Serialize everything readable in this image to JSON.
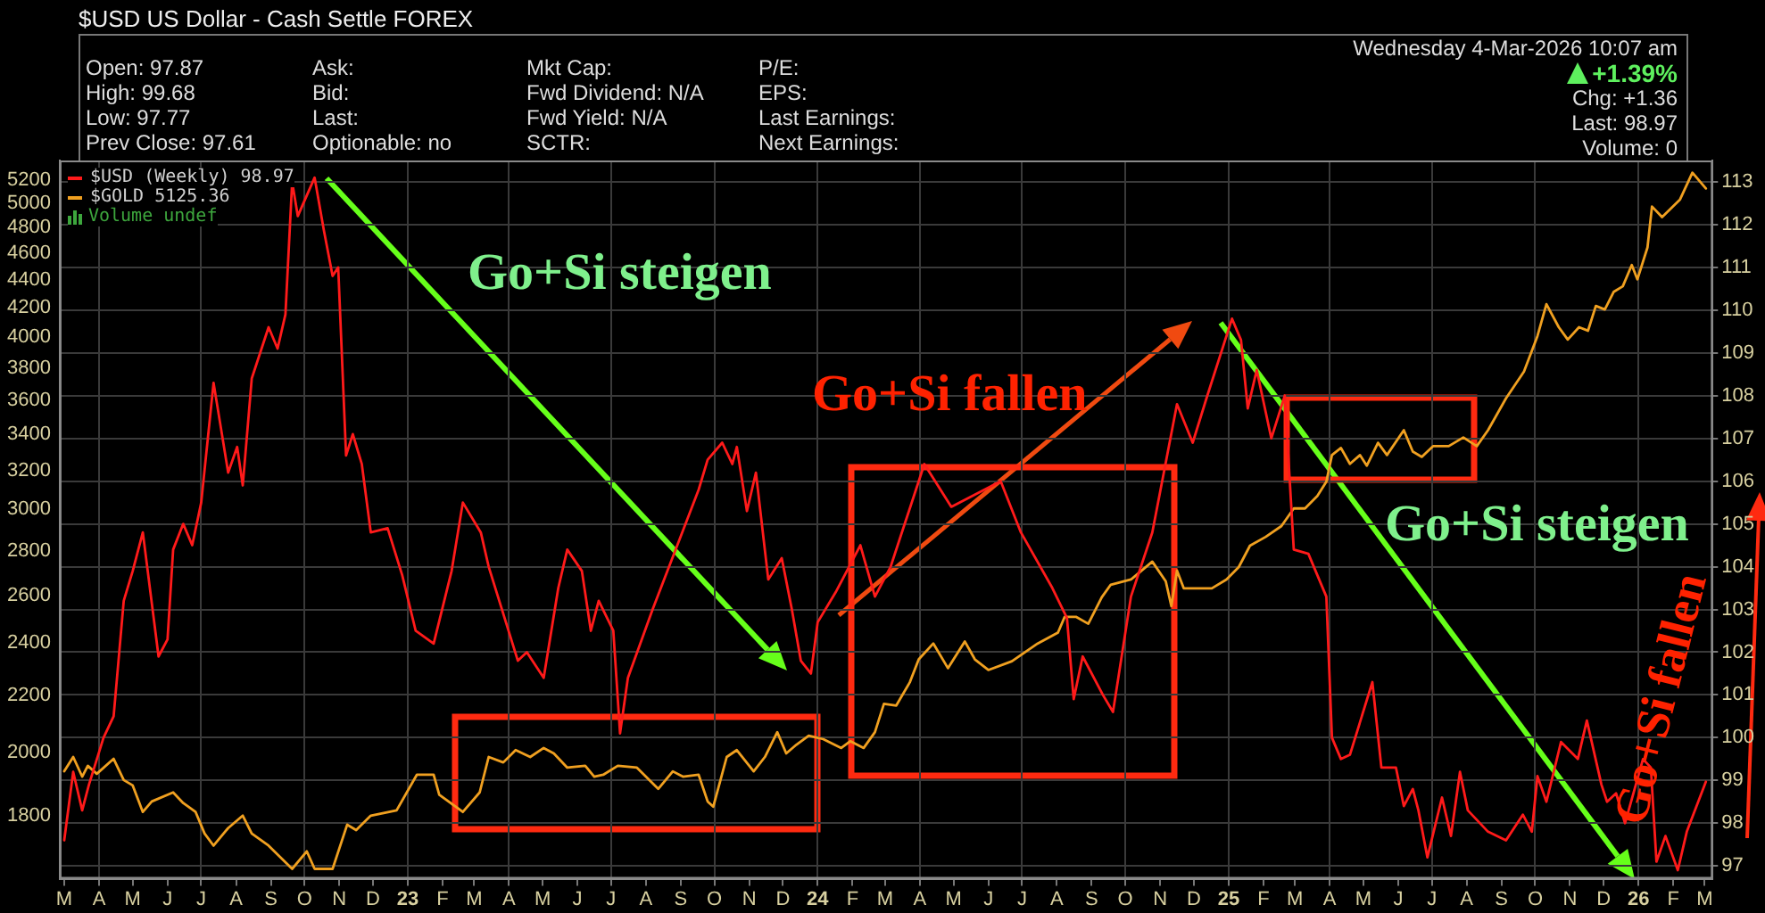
{
  "chart_data": {
    "type": "line",
    "title": "$USD US Dollar - Cash Settle FOREX",
    "annotations": [
      "Open: 97.87",
      "High: 99.68",
      "Low: 97.77",
      "Prev Close: 97.61",
      "Ask:",
      "Bid:",
      "Last:",
      "Optionable: no",
      "Mkt Cap:",
      "Fwd Dividend: N/A",
      "Fwd Yield: N/A",
      "SCTR:",
      "P/E:",
      "EPS:",
      "Last Earnings:",
      "Next Earnings:",
      "Wednesday 4-Mar-2026 10:07 am",
      "+1.39%",
      "Chg: +1.36",
      "Last: 98.97",
      "Volume: 0",
      "Volume undef",
      "Go+Si steigen",
      "Go+Si fallen",
      "Go+Si steigen",
      "Go+Si fallen"
    ],
    "xlim": [
      "2022-02-25",
      "2026-03-08"
    ],
    "xticks": [
      {
        "value": "2022-03-01",
        "label": "M"
      },
      {
        "value": "2022-04-01",
        "label": "A"
      },
      {
        "value": "2022-05-01",
        "label": "M"
      },
      {
        "value": "2022-06-01",
        "label": "J"
      },
      {
        "value": "2022-07-01",
        "label": "J"
      },
      {
        "value": "2022-08-01",
        "label": "A"
      },
      {
        "value": "2022-09-01",
        "label": "S"
      },
      {
        "value": "2022-10-01",
        "label": "O"
      },
      {
        "value": "2022-11-01",
        "label": "N"
      },
      {
        "value": "2022-12-01",
        "label": "D"
      },
      {
        "value": "2023-01-01",
        "label": "23"
      },
      {
        "value": "2023-02-01",
        "label": "F"
      },
      {
        "value": "2023-03-01",
        "label": "M"
      },
      {
        "value": "2023-04-01",
        "label": "A"
      },
      {
        "value": "2023-05-01",
        "label": "M"
      },
      {
        "value": "2023-06-01",
        "label": "J"
      },
      {
        "value": "2023-07-01",
        "label": "J"
      },
      {
        "value": "2023-08-01",
        "label": "A"
      },
      {
        "value": "2023-09-01",
        "label": "S"
      },
      {
        "value": "2023-10-01",
        "label": "O"
      },
      {
        "value": "2023-11-01",
        "label": "N"
      },
      {
        "value": "2023-12-01",
        "label": "D"
      },
      {
        "value": "2024-01-01",
        "label": "24"
      },
      {
        "value": "2024-02-01",
        "label": "F"
      },
      {
        "value": "2024-03-01",
        "label": "M"
      },
      {
        "value": "2024-04-01",
        "label": "A"
      },
      {
        "value": "2024-05-01",
        "label": "M"
      },
      {
        "value": "2024-06-01",
        "label": "J"
      },
      {
        "value": "2024-07-01",
        "label": "J"
      },
      {
        "value": "2024-08-01",
        "label": "A"
      },
      {
        "value": "2024-09-01",
        "label": "S"
      },
      {
        "value": "2024-10-01",
        "label": "O"
      },
      {
        "value": "2024-11-01",
        "label": "N"
      },
      {
        "value": "2024-12-01",
        "label": "D"
      },
      {
        "value": "2025-01-01",
        "label": "25"
      },
      {
        "value": "2025-02-01",
        "label": "F"
      },
      {
        "value": "2025-03-01",
        "label": "M"
      },
      {
        "value": "2025-04-01",
        "label": "A"
      },
      {
        "value": "2025-05-01",
        "label": "M"
      },
      {
        "value": "2025-06-01",
        "label": "J"
      },
      {
        "value": "2025-07-01",
        "label": "J"
      },
      {
        "value": "2025-08-01",
        "label": "A"
      },
      {
        "value": "2025-09-01",
        "label": "S"
      },
      {
        "value": "2025-10-01",
        "label": "O"
      },
      {
        "value": "2025-11-01",
        "label": "N"
      },
      {
        "value": "2025-12-01",
        "label": "D"
      },
      {
        "value": "2026-01-01",
        "label": "26"
      },
      {
        "value": "2026-02-01",
        "label": "F"
      },
      {
        "value": "2026-03-01",
        "label": "M"
      }
    ],
    "ylim": [
      1620,
      5370
    ],
    "yticks": [
      1800,
      2000,
      2200,
      2400,
      2600,
      2800,
      3000,
      3200,
      3400,
      3600,
      3800,
      4000,
      4200,
      4400,
      4600,
      4800,
      5000,
      5200
    ],
    "y2lim": [
      96.7,
      113.5
    ],
    "y2ticks": [
      97,
      98,
      99,
      100,
      101,
      102,
      103,
      104,
      105,
      106,
      107,
      108,
      109,
      110,
      111,
      112,
      113
    ],
    "log": "y",
    "grid": true,
    "legend": "top left",
    "series": [
      {
        "name": "$USD (Weekly) 98.97",
        "color": "#ff1a1a",
        "axis": "y2",
        "x": [
          "2022-03-01",
          "2022-03-09",
          "2022-03-17",
          "2022-03-23",
          "2022-04-05",
          "2022-04-14",
          "2022-04-23",
          "2022-05-01",
          "2022-05-10",
          "2022-05-24",
          "2022-06-01",
          "2022-06-06",
          "2022-06-15",
          "2022-06-23",
          "2022-07-01",
          "2022-07-12",
          "2022-07-25",
          "2022-08-02",
          "2022-08-07",
          "2022-08-15",
          "2022-08-30",
          "2022-09-07",
          "2022-09-14",
          "2022-09-20",
          "2022-09-25",
          "2022-10-10",
          "2022-10-18",
          "2022-10-26",
          "2022-10-31",
          "2022-11-07",
          "2022-11-13",
          "2022-11-21",
          "2022-11-29",
          "2022-12-14",
          "2022-12-27",
          "2023-01-08",
          "2023-01-24",
          "2023-02-09",
          "2023-02-19",
          "2023-03-07",
          "2023-03-14",
          "2023-04-09",
          "2023-04-17",
          "2023-05-02",
          "2023-05-15",
          "2023-05-23",
          "2023-06-05",
          "2023-06-13",
          "2023-06-20",
          "2023-07-03",
          "2023-07-09",
          "2023-07-16",
          "2023-08-07",
          "2023-08-29",
          "2023-09-17",
          "2023-09-25",
          "2023-10-08",
          "2023-10-17",
          "2023-10-21",
          "2023-10-30",
          "2023-11-07",
          "2023-11-18",
          "2023-11-30",
          "2023-12-09",
          "2023-12-17",
          "2023-12-26",
          "2024-01-01",
          "2024-01-17",
          "2024-02-08",
          "2024-02-21",
          "2024-03-06",
          "2024-04-05",
          "2024-04-29",
          "2024-06-12",
          "2024-06-30",
          "2024-07-28",
          "2024-08-10",
          "2024-08-16",
          "2024-08-24",
          "2024-09-11",
          "2024-09-20",
          "2024-10-06",
          "2024-10-25",
          "2024-11-16",
          "2024-11-30",
          "2024-12-13",
          "2025-01-04",
          "2025-01-12",
          "2025-01-18",
          "2025-01-26",
          "2025-02-08",
          "2025-02-20",
          "2025-02-28",
          "2025-03-13",
          "2025-03-29",
          "2025-04-03",
          "2025-04-11",
          "2025-04-19",
          "2025-05-09",
          "2025-05-17",
          "2025-05-30",
          "2025-06-06",
          "2025-06-14",
          "2025-06-19",
          "2025-06-27",
          "2025-07-10",
          "2025-07-18",
          "2025-07-26",
          "2025-08-02",
          "2025-08-20",
          "2025-09-05",
          "2025-09-20",
          "2025-09-28",
          "2025-10-03",
          "2025-10-11",
          "2025-10-24",
          "2025-11-08",
          "2025-11-16",
          "2025-11-29",
          "2025-12-04",
          "2025-12-12",
          "2025-12-20",
          "2026-01-05",
          "2026-01-12",
          "2026-01-17",
          "2026-01-25",
          "2026-02-05",
          "2026-02-13",
          "2026-03-02"
        ],
        "values": [
          97.6,
          99.2,
          98.3,
          98.9,
          100.0,
          100.5,
          103.2,
          103.9,
          104.8,
          101.9,
          102.3,
          104.4,
          105.0,
          104.5,
          105.5,
          108.3,
          106.2,
          106.8,
          105.9,
          108.4,
          109.6,
          109.1,
          109.9,
          113.0,
          112.2,
          113.1,
          111.9,
          110.8,
          111.0,
          106.6,
          107.1,
          106.4,
          104.8,
          104.9,
          103.8,
          102.5,
          102.2,
          103.9,
          105.5,
          104.8,
          104.0,
          101.8,
          102.0,
          101.4,
          103.5,
          104.4,
          103.9,
          102.5,
          103.2,
          102.5,
          100.1,
          101.4,
          103.0,
          104.5,
          105.8,
          106.5,
          106.9,
          106.4,
          106.8,
          105.3,
          106.2,
          103.7,
          104.2,
          103.0,
          101.8,
          101.5,
          102.7,
          103.4,
          104.5,
          103.3,
          104.0,
          106.4,
          105.4,
          106.0,
          104.8,
          103.5,
          102.8,
          100.9,
          101.9,
          101.0,
          100.6,
          103.3,
          104.8,
          107.8,
          106.9,
          108.0,
          109.8,
          109.3,
          107.7,
          108.6,
          107.0,
          108.0,
          104.4,
          104.3,
          103.3,
          100.0,
          99.5,
          99.6,
          101.3,
          99.3,
          99.3,
          98.4,
          98.8,
          98.3,
          97.2,
          98.6,
          97.7,
          99.2,
          98.3,
          97.8,
          97.6,
          98.2,
          97.8,
          99.1,
          98.5,
          99.9,
          99.5,
          100.4,
          98.9,
          98.5,
          98.7,
          98.0,
          99.5,
          99.3,
          97.1,
          97.7,
          96.9,
          97.8,
          98.97
        ]
      },
      {
        "name": "$GOLD 5125.36",
        "color": "#f0a020",
        "x": [
          "2022-03-01",
          "2022-03-09",
          "2022-03-17",
          "2022-03-22",
          "2022-03-30",
          "2022-04-14",
          "2022-04-23",
          "2022-05-01",
          "2022-05-10",
          "2022-05-18",
          "2022-06-06",
          "2022-06-15",
          "2022-06-26",
          "2022-07-04",
          "2022-07-12",
          "2022-07-25",
          "2022-08-07",
          "2022-08-15",
          "2022-08-30",
          "2022-09-20",
          "2022-10-03",
          "2022-10-10",
          "2022-10-26",
          "2022-11-08",
          "2022-11-16",
          "2022-11-29",
          "2022-12-22",
          "2023-01-09",
          "2023-01-24",
          "2023-01-29",
          "2023-02-19",
          "2023-03-06",
          "2023-03-14",
          "2023-03-27",
          "2023-04-07",
          "2023-04-20",
          "2023-05-02",
          "2023-05-11",
          "2023-05-23",
          "2023-06-08",
          "2023-06-16",
          "2023-06-24",
          "2023-07-07",
          "2023-07-24",
          "2023-08-12",
          "2023-08-25",
          "2023-09-03",
          "2023-09-17",
          "2023-09-25",
          "2023-09-30",
          "2023-10-12",
          "2023-10-21",
          "2023-11-05",
          "2023-11-15",
          "2023-11-26",
          "2023-12-04",
          "2023-12-13",
          "2023-12-24",
          "2024-01-06",
          "2024-01-22",
          "2024-01-30",
          "2024-02-11",
          "2024-02-21",
          "2024-02-29",
          "2024-03-11",
          "2024-03-23",
          "2024-03-31",
          "2024-04-13",
          "2024-04-26",
          "2024-05-11",
          "2024-05-20",
          "2024-06-01",
          "2024-06-22",
          "2024-07-15",
          "2024-08-02",
          "2024-08-08",
          "2024-08-18",
          "2024-08-29",
          "2024-09-10",
          "2024-09-18",
          "2024-10-06",
          "2024-10-25",
          "2024-11-06",
          "2024-11-11",
          "2024-11-16",
          "2024-11-22",
          "2024-12-17",
          "2024-12-30",
          "2025-01-10",
          "2025-01-20",
          "2025-02-03",
          "2025-02-17",
          "2025-02-28",
          "2025-03-10",
          "2025-03-21",
          "2025-03-29",
          "2025-04-03",
          "2025-04-11",
          "2025-04-19",
          "2025-04-28",
          "2025-05-04",
          "2025-05-14",
          "2025-05-22",
          "2025-06-06",
          "2025-06-14",
          "2025-06-22",
          "2025-07-02",
          "2025-07-16",
          "2025-07-29",
          "2025-08-10",
          "2025-08-20",
          "2025-09-05",
          "2025-09-21",
          "2025-10-03",
          "2025-10-11",
          "2025-10-22",
          "2025-10-30",
          "2025-11-09",
          "2025-11-17",
          "2025-11-24",
          "2025-12-02",
          "2025-12-10",
          "2025-12-18",
          "2025-12-26",
          "2025-12-31",
          "2026-01-09",
          "2026-01-13",
          "2026-01-22",
          "2026-02-07",
          "2026-02-18",
          "2026-03-02"
        ],
        "values": [
          1938,
          1985,
          1921,
          1956,
          1930,
          1979,
          1910,
          1893,
          1811,
          1843,
          1871,
          1838,
          1811,
          1747,
          1712,
          1763,
          1800,
          1747,
          1712,
          1647,
          1696,
          1647,
          1647,
          1773,
          1757,
          1800,
          1816,
          1927,
          1927,
          1864,
          1811,
          1871,
          1985,
          1967,
          2008,
          1985,
          2015,
          1997,
          1950,
          1956,
          1921,
          1927,
          1956,
          1950,
          1882,
          1938,
          1921,
          1927,
          1843,
          1827,
          1985,
          2008,
          1938,
          1985,
          2069,
          1997,
          2026,
          2057,
          2045,
          2015,
          2038,
          2015,
          2069,
          2169,
          2163,
          2248,
          2336,
          2399,
          2302,
          2407,
          2336,
          2295,
          2329,
          2399,
          2443,
          2508,
          2508,
          2479,
          2591,
          2646,
          2669,
          2750,
          2661,
          2553,
          2709,
          2630,
          2630,
          2669,
          2725,
          2824,
          2866,
          2918,
          3005,
          3005,
          3068,
          3142,
          3285,
          3324,
          3237,
          3285,
          3227,
          3353,
          3285,
          3424,
          3304,
          3275,
          3334,
          3334,
          3383,
          3334,
          3424,
          3611,
          3776,
          4006,
          4225,
          4066,
          3983,
          4066,
          4042,
          4213,
          4188,
          4314,
          4353,
          4510,
          4404,
          4645,
          4973,
          4886,
          5032,
          5262,
          5125
        ]
      }
    ]
  }
}
